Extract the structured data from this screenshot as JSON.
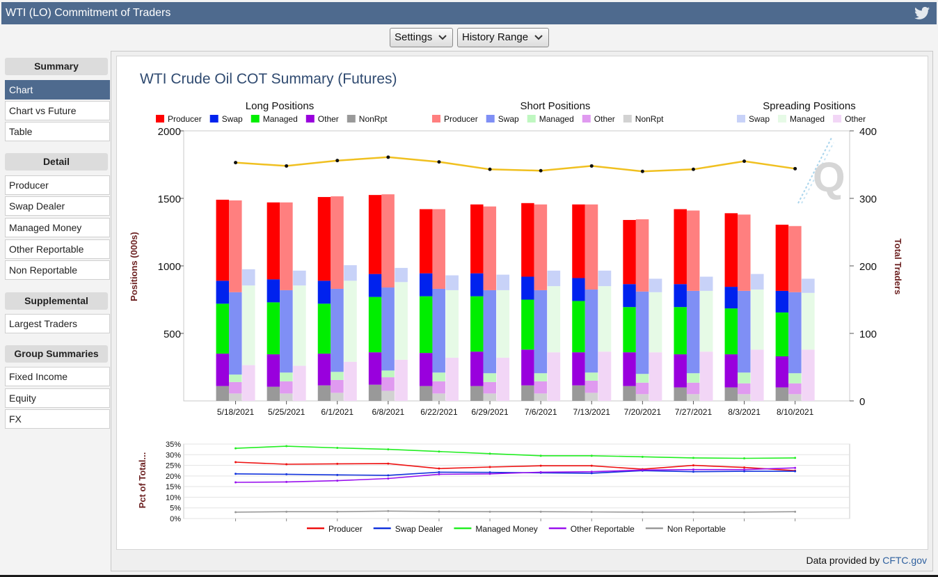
{
  "window": {
    "title": "WTI (LO) Commitment of Traders"
  },
  "toolbar": {
    "settings_label": "Settings",
    "history_label": "History Range"
  },
  "sidebar": {
    "sections": [
      {
        "label": "Summary",
        "items": [
          "Chart",
          "Chart vs Future",
          "Table"
        ]
      },
      {
        "label": "Detail",
        "items": [
          "Producer",
          "Swap Dealer",
          "Managed Money",
          "Other Reportable",
          "Non Reportable"
        ]
      },
      {
        "label": "Supplemental",
        "items": [
          "Largest Traders"
        ]
      },
      {
        "label": "Group Summaries",
        "items": [
          "Fixed Income",
          "Equity",
          "FX"
        ]
      }
    ],
    "active_item": "Chart"
  },
  "footer": {
    "text": "Data provided by",
    "link": "CFTC.gov"
  },
  "colors": {
    "long": {
      "Producer": "#ff0000",
      "Swap": "#0022ee",
      "Managed": "#00ee00",
      "Other": "#9900dd",
      "NonRpt": "#999999"
    },
    "short": {
      "Producer": "#ff7f7f",
      "Swap": "#7f8ff5",
      "Managed": "#bff7c0",
      "Other": "#e09af0",
      "NonRpt": "#d2d2d2"
    },
    "spread": {
      "Swap": "#c8d2f8",
      "Managed": "#e6fae6",
      "Other": "#f2d6f6"
    },
    "traders_line": "#f0c020",
    "pct": {
      "Producer": "#ee1111",
      "Swap Dealer": "#1133dd",
      "Managed Money": "#22ee22",
      "Other Reportable": "#9911ee",
      "Non Reportable": "#999999"
    }
  },
  "chart_data": [
    {
      "type": "bar",
      "title": "WTI Crude Oil COT Summary (Futures)",
      "ylabel": "Positions (000s)",
      "y2label": "Total Traders",
      "ylim": [
        0,
        2000
      ],
      "y_ticks": [
        "500",
        "1000",
        "1500",
        "2000"
      ],
      "y2lim": [
        0,
        400
      ],
      "y2_ticks": [
        "0",
        "100",
        "200",
        "300",
        "400"
      ],
      "categories": [
        "5/18/2021",
        "5/25/2021",
        "6/1/2021",
        "6/8/2021",
        "6/22/2021",
        "6/29/2021",
        "7/6/2021",
        "7/13/2021",
        "7/20/2021",
        "7/27/2021",
        "8/3/2021",
        "8/10/2021"
      ],
      "group_titles": {
        "long": "Long Positions",
        "short": "Short Positions",
        "spread": "Spreading Positions"
      },
      "legend": {
        "long": [
          "Producer",
          "Swap",
          "Managed",
          "Other",
          "NonRpt"
        ],
        "short": [
          "Producer",
          "Swap",
          "Managed",
          "Other",
          "NonRpt"
        ],
        "spread": [
          "Swap",
          "Managed",
          "Other"
        ]
      },
      "long": {
        "NonRpt": [
          110,
          105,
          115,
          120,
          110,
          110,
          115,
          115,
          110,
          100,
          100,
          100
        ],
        "Other": [
          240,
          240,
          235,
          240,
          245,
          255,
          265,
          245,
          250,
          245,
          245,
          230
        ],
        "Managed": [
          370,
          385,
          370,
          410,
          420,
          410,
          370,
          380,
          335,
          350,
          340,
          325
        ],
        "Swap": [
          170,
          170,
          170,
          170,
          170,
          170,
          170,
          170,
          170,
          170,
          160,
          160
        ],
        "Producer": [
          600,
          570,
          620,
          585,
          475,
          510,
          545,
          545,
          475,
          555,
          545,
          490
        ]
      },
      "short": {
        "NonRpt": [
          55,
          55,
          60,
          75,
          55,
          55,
          55,
          60,
          50,
          50,
          50,
          50
        ],
        "Other": [
          85,
          90,
          95,
          100,
          90,
          85,
          90,
          90,
          85,
          85,
          80,
          80
        ],
        "Managed": [
          55,
          65,
          60,
          50,
          65,
          65,
          60,
          60,
          65,
          70,
          80,
          75
        ],
        "Swap": [
          610,
          610,
          615,
          615,
          620,
          615,
          615,
          615,
          610,
          610,
          605,
          600
        ],
        "Producer": [
          680,
          650,
          685,
          690,
          590,
          620,
          635,
          630,
          535,
          595,
          565,
          490
        ]
      },
      "spread": {
        "Other": [
          265,
          260,
          290,
          305,
          320,
          320,
          360,
          365,
          360,
          365,
          380,
          380
        ],
        "Managed": [
          590,
          595,
          600,
          575,
          500,
          500,
          490,
          485,
          445,
          450,
          445,
          420
        ],
        "Swap": [
          120,
          110,
          115,
          105,
          110,
          115,
          115,
          115,
          100,
          105,
          115,
          105
        ]
      },
      "total_traders": [
        353,
        348,
        356,
        361,
        354,
        343,
        341,
        348,
        340,
        343,
        355,
        344
      ]
    },
    {
      "type": "line",
      "ylabel": "Pct of Total...",
      "ylim": [
        0,
        35
      ],
      "y_ticks": [
        "0%",
        "5%",
        "10%",
        "15%",
        "20%",
        "25%",
        "30%",
        "35%"
      ],
      "series": [
        {
          "name": "Producer",
          "values": [
            26.5,
            25.5,
            25.7,
            25.8,
            23.5,
            24.2,
            24.8,
            24.8,
            23.2,
            25.0,
            24.0,
            22.5
          ]
        },
        {
          "name": "Swap Dealer",
          "values": [
            21.0,
            20.8,
            20.5,
            20.3,
            21.8,
            21.7,
            21.5,
            21.3,
            22.5,
            22.0,
            22.2,
            22.2
          ]
        },
        {
          "name": "Managed Money",
          "values": [
            33.0,
            34.0,
            33.2,
            32.5,
            31.5,
            30.5,
            29.5,
            29.5,
            29.0,
            28.5,
            28.3,
            28.5
          ]
        },
        {
          "name": "Other Reportable",
          "values": [
            17.0,
            17.2,
            17.8,
            18.8,
            20.8,
            21.0,
            21.8,
            22.0,
            22.8,
            23.0,
            23.0,
            23.8
          ]
        },
        {
          "name": "Non Reportable",
          "values": [
            3.0,
            3.2,
            3.2,
            3.5,
            3.3,
            3.2,
            3.2,
            3.1,
            3.0,
            3.0,
            3.0,
            3.2
          ]
        }
      ]
    }
  ]
}
